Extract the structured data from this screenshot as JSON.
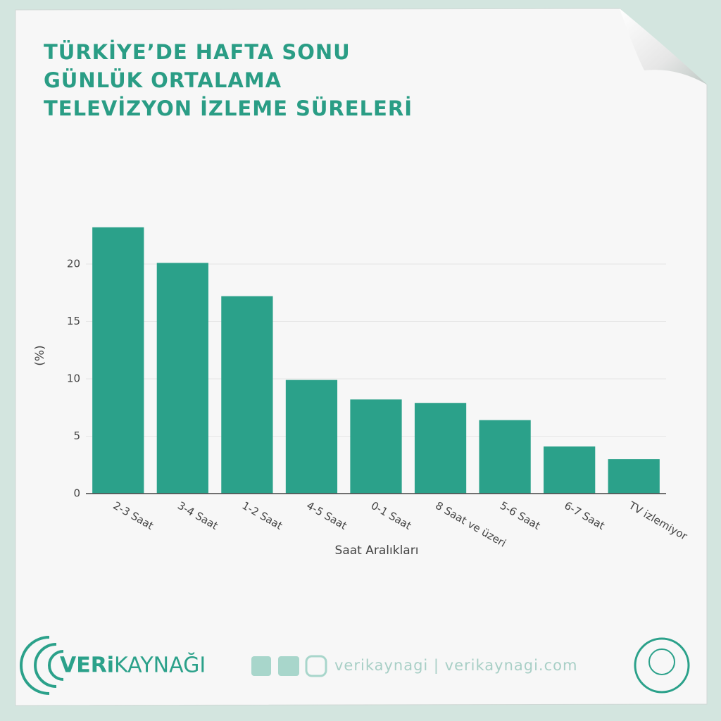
{
  "chart_data": {
    "type": "bar",
    "title": [
      "TÜRKİYE’DE HAFTA SONU",
      "GÜNLÜK ORTALAMA",
      "TELEVİZYON İZLEME SÜRELERİ"
    ],
    "x_label": "Saat Aralıkları",
    "y_label": "(%)",
    "categories": [
      "2-3 Saat",
      "3-4 Saat",
      "1-2 Saat",
      "4-5 Saat",
      "0-1 Saat",
      "8 Saat ve üzeri",
      "5-6 Saat",
      "6-7 Saat",
      "TV izlemiyor"
    ],
    "values": [
      23.2,
      20.1,
      17.2,
      9.9,
      8.2,
      7.9,
      6.4,
      4.1,
      3.0
    ],
    "color": "#2ba18a",
    "ylim": [
      0,
      24.4
    ],
    "yticks": [
      0,
      5,
      10,
      15,
      20
    ],
    "grid": true
  },
  "footer": {
    "brand_bold": "VERi",
    "brand": "KAYNAĞI",
    "links": "verikaynagi | verikaynagi.com"
  }
}
